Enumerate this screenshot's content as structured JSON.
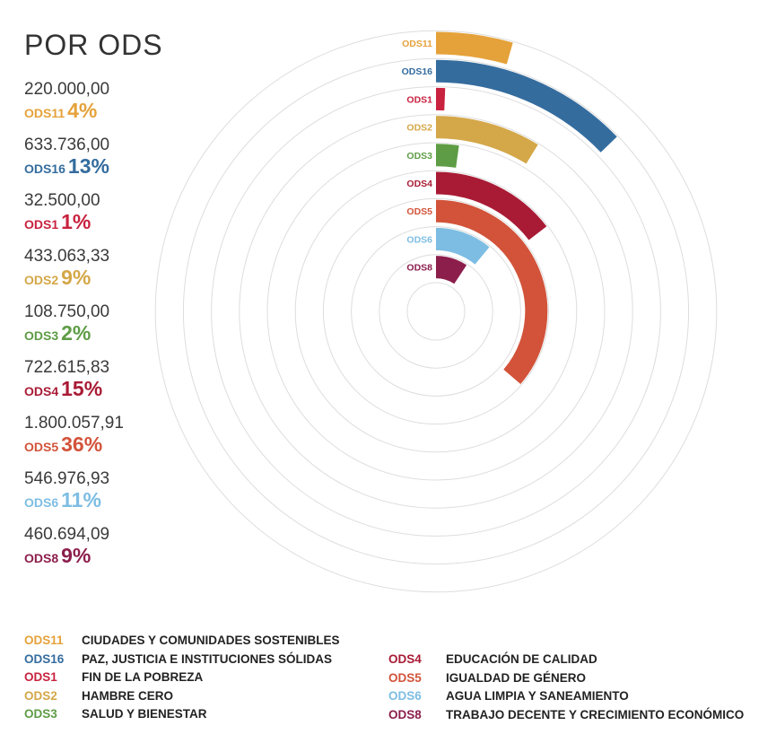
{
  "title": "POR ODS",
  "chart_data": {
    "type": "radial-bar",
    "series": [
      {
        "code": "ODS11",
        "amount": "220.000,00",
        "pct": "4%",
        "value": 220000.0,
        "color": "#E5A23A"
      },
      {
        "code": "ODS16",
        "amount": "633.736,00",
        "pct": "13%",
        "value": 633736.0,
        "color": "#346C9E"
      },
      {
        "code": "ODS1",
        "amount": "32.500,00",
        "pct": "1%",
        "value": 32500.0,
        "color": "#C8223F"
      },
      {
        "code": "ODS2",
        "amount": "433.063,33",
        "pct": "9%",
        "value": 433063.33,
        "color": "#D4A748"
      },
      {
        "code": "ODS3",
        "amount": "108.750,00",
        "pct": "2%",
        "value": 108750.0,
        "color": "#5E9C45"
      },
      {
        "code": "ODS4",
        "amount": "722.615,83",
        "pct": "15%",
        "value": 722615.83,
        "color": "#A91B35"
      },
      {
        "code": "ODS5",
        "amount": "1.800.057,91",
        "pct": "36%",
        "value": 1800057.91,
        "color": "#D2533A"
      },
      {
        "code": "ODS6",
        "amount": "546.976,93",
        "pct": "11%",
        "value": 546976.93,
        "color": "#7DBDE3"
      },
      {
        "code": "ODS8",
        "amount": "460.694,09",
        "pct": "9%",
        "value": 460694.09,
        "color": "#8C1E4C"
      }
    ]
  },
  "legend": {
    "left": [
      {
        "code": "ODS11",
        "label": "CIUDADES Y COMUNIDADES SOSTENIBLES",
        "color": "#E5A23A"
      },
      {
        "code": "ODS16",
        "label": "PAZ, JUSTICIA E INSTITUCIONES SÓLIDAS",
        "color": "#346C9E"
      },
      {
        "code": "ODS1",
        "label": "FIN DE LA POBREZA",
        "color": "#C8223F"
      },
      {
        "code": "ODS2",
        "label": "HAMBRE CERO",
        "color": "#D4A748"
      },
      {
        "code": "ODS3",
        "label": "SALUD Y BIENESTAR",
        "color": "#5E9C45"
      }
    ],
    "right": [
      {
        "code": "ODS4",
        "label": "EDUCACIÓN DE CALIDAD",
        "color": "#A91B35"
      },
      {
        "code": "ODS5",
        "label": "IGUALDAD DE GÉNERO",
        "color": "#D2533A"
      },
      {
        "code": "ODS6",
        "label": "AGUA LIMPIA Y SANEAMIENTO",
        "color": "#7DBDE3"
      },
      {
        "code": "ODS8",
        "label": "TRABAJO DECENTE Y CRECIMIENTO ECONÓMICO",
        "color": "#8C1E4C"
      }
    ]
  }
}
